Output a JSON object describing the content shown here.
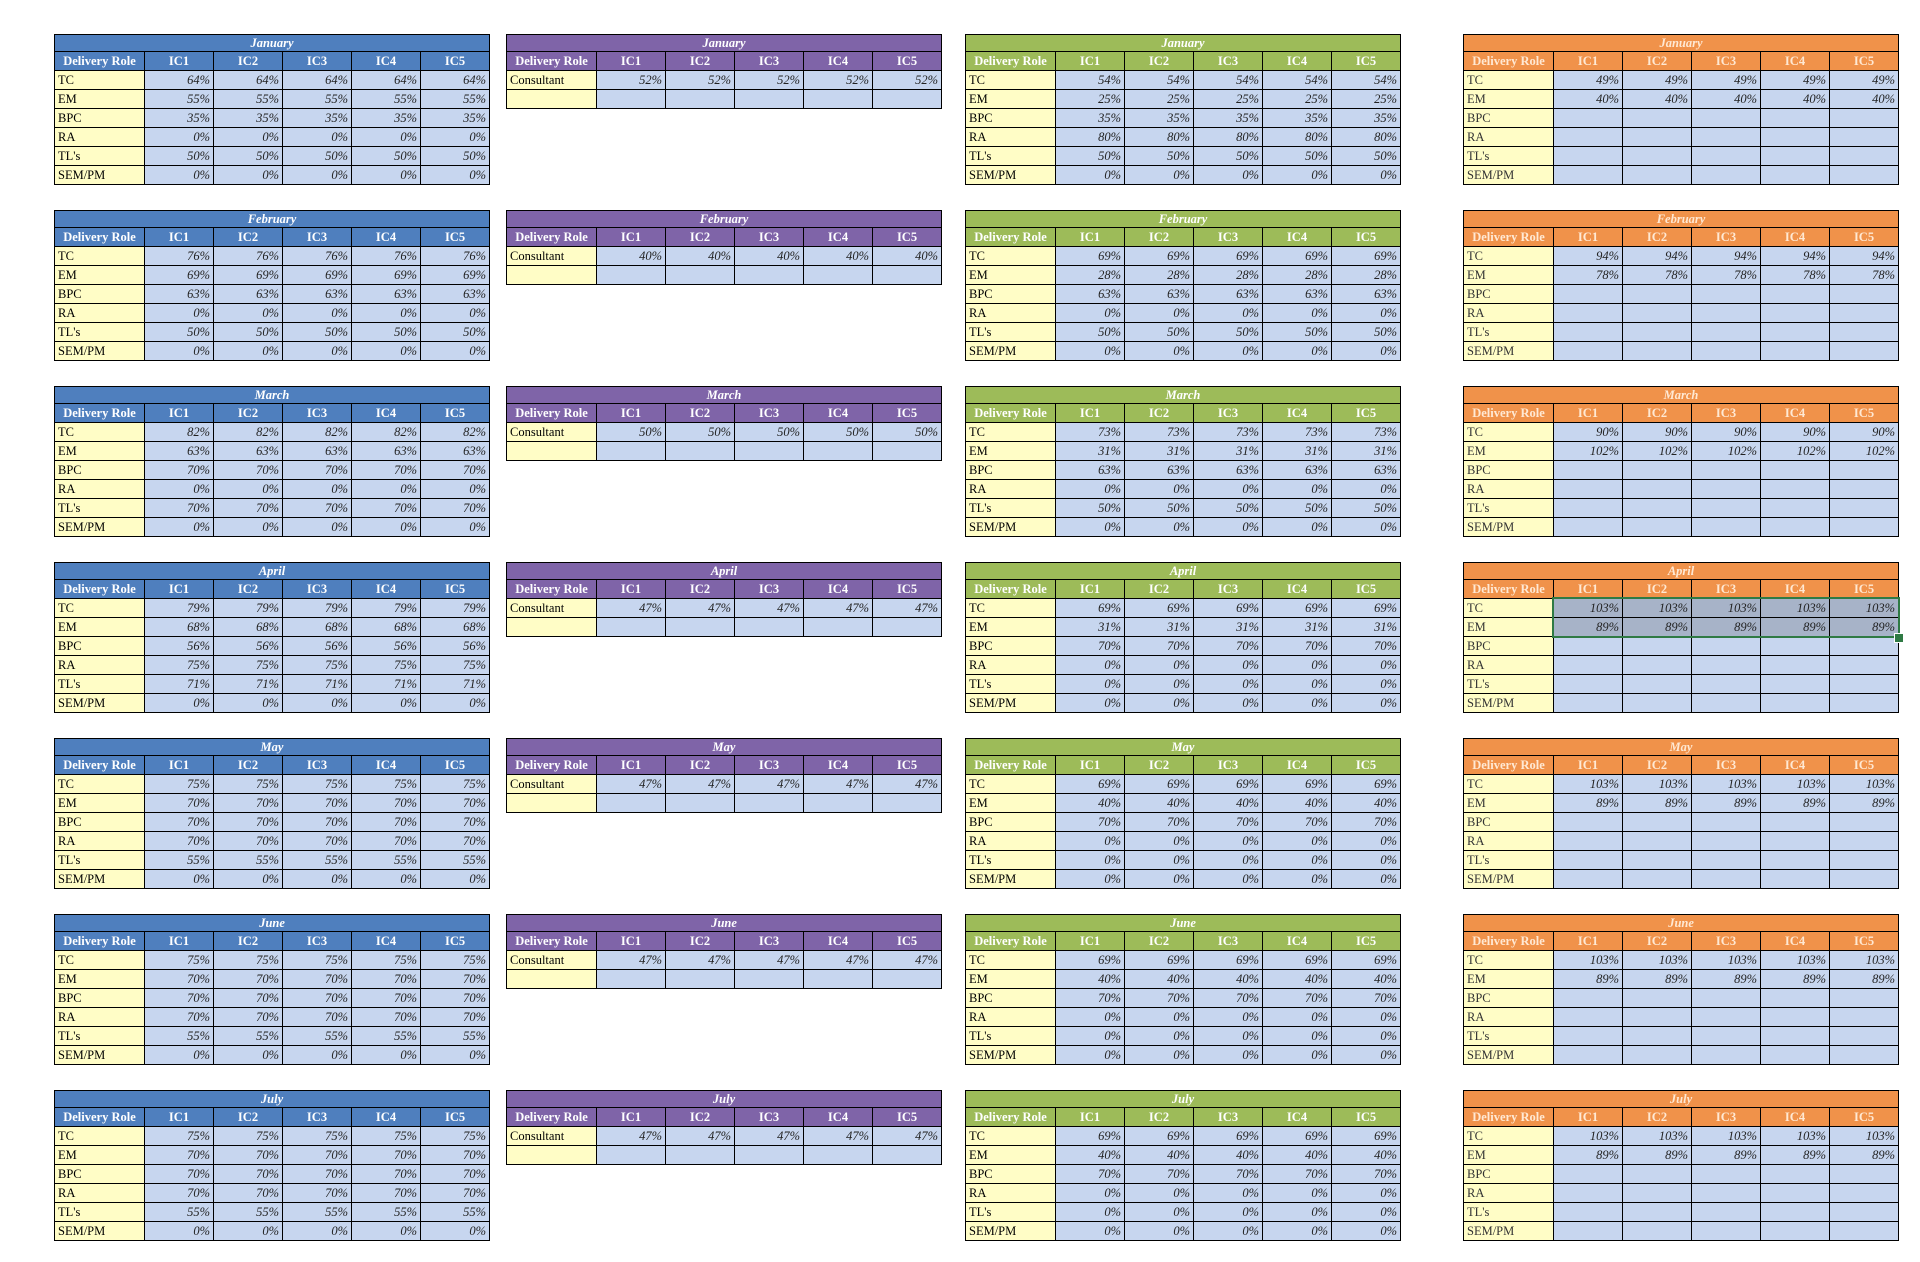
{
  "tables": [
    {
      "color": "blue",
      "month": "January",
      "headers": [
        "Delivery Role",
        "IC1",
        "IC2",
        "IC3",
        "IC4",
        "IC5"
      ],
      "rows": [
        [
          "TC",
          "64%"
        ],
        [
          "EM",
          "55%"
        ],
        [
          "BPC",
          "35%"
        ],
        [
          "RA",
          "0%"
        ],
        [
          "TL's",
          "50%"
        ],
        [
          "SEM/PM",
          "0%"
        ]
      ]
    },
    {
      "color": "purple",
      "month": "January",
      "headers": [
        "Delivery Role",
        "IC1",
        "IC2",
        "IC3",
        "IC4",
        "IC5"
      ],
      "rows": [
        [
          "Consultant",
          "52%"
        ],
        [
          "",
          ""
        ]
      ]
    },
    {
      "color": "green",
      "month": "January",
      "headers": [
        "Delivery Role",
        "IC1",
        "IC2",
        "IC3",
        "IC4",
        "IC5"
      ],
      "rows": [
        [
          "TC",
          "54%"
        ],
        [
          "EM",
          "25%"
        ],
        [
          "BPC",
          "35%"
        ],
        [
          "RA",
          "80%"
        ],
        [
          "TL's",
          "50%"
        ],
        [
          "SEM/PM",
          "0%"
        ]
      ]
    },
    {
      "color": "orange",
      "month": "January",
      "headers": [
        "Delivery Role",
        "IC1",
        "IC2",
        "IC3",
        "IC4",
        "IC5"
      ],
      "rows": [
        [
          "TC",
          "49%"
        ],
        [
          "EM",
          "40%"
        ],
        [
          "BPC",
          ""
        ],
        [
          "RA",
          ""
        ],
        [
          "TL's",
          ""
        ],
        [
          "SEM/PM",
          ""
        ]
      ]
    },
    {
      "color": "blue",
      "month": "February",
      "headers": [
        "Delivery Role",
        "IC1",
        "IC2",
        "IC3",
        "IC4",
        "IC5"
      ],
      "rows": [
        [
          "TC",
          "76%"
        ],
        [
          "EM",
          "69%"
        ],
        [
          "BPC",
          "63%"
        ],
        [
          "RA",
          "0%"
        ],
        [
          "TL's",
          "50%"
        ],
        [
          "SEM/PM",
          "0%"
        ]
      ]
    },
    {
      "color": "purple",
      "month": "February",
      "headers": [
        "Delivery Role",
        "IC1",
        "IC2",
        "IC3",
        "IC4",
        "IC5"
      ],
      "rows": [
        [
          "Consultant",
          "40%"
        ],
        [
          "",
          ""
        ]
      ]
    },
    {
      "color": "green",
      "month": "February",
      "headers": [
        "Delivery Role",
        "IC1",
        "IC2",
        "IC3",
        "IC4",
        "IC5"
      ],
      "rows": [
        [
          "TC",
          "69%"
        ],
        [
          "EM",
          "28%"
        ],
        [
          "BPC",
          "63%"
        ],
        [
          "RA",
          "0%"
        ],
        [
          "TL's",
          "50%"
        ],
        [
          "SEM/PM",
          "0%"
        ]
      ]
    },
    {
      "color": "orange",
      "month": "February",
      "headers": [
        "Delivery Role",
        "IC1",
        "IC2",
        "IC3",
        "IC4",
        "IC5"
      ],
      "rows": [
        [
          "TC",
          "94%"
        ],
        [
          "EM",
          "78%"
        ],
        [
          "BPC",
          ""
        ],
        [
          "RA",
          ""
        ],
        [
          "TL's",
          ""
        ],
        [
          "SEM/PM",
          ""
        ]
      ]
    },
    {
      "color": "blue",
      "month": "March",
      "headers": [
        "Delivery Role",
        "IC1",
        "IC2",
        "IC3",
        "IC4",
        "IC5"
      ],
      "rows": [
        [
          "TC",
          "82%"
        ],
        [
          "EM",
          "63%"
        ],
        [
          "BPC",
          "70%"
        ],
        [
          "RA",
          "0%"
        ],
        [
          "TL's",
          "70%"
        ],
        [
          "SEM/PM",
          "0%"
        ]
      ]
    },
    {
      "color": "purple",
      "month": "March",
      "headers": [
        "Delivery Role",
        "IC1",
        "IC2",
        "IC3",
        "IC4",
        "IC5"
      ],
      "rows": [
        [
          "Consultant",
          "50%"
        ],
        [
          "",
          ""
        ]
      ]
    },
    {
      "color": "green",
      "month": "March",
      "headers": [
        "Delivery Role",
        "IC1",
        "IC2",
        "IC3",
        "IC4",
        "IC5"
      ],
      "rows": [
        [
          "TC",
          "73%"
        ],
        [
          "EM",
          "31%"
        ],
        [
          "BPC",
          "63%"
        ],
        [
          "RA",
          "0%"
        ],
        [
          "TL's",
          "50%"
        ],
        [
          "SEM/PM",
          "0%"
        ]
      ]
    },
    {
      "color": "orange",
      "month": "March",
      "headers": [
        "Delivery Role",
        "IC1",
        "IC2",
        "IC3",
        "IC4",
        "IC5"
      ],
      "rows": [
        [
          "TC",
          "90%"
        ],
        [
          "EM",
          "102%"
        ],
        [
          "BPC",
          ""
        ],
        [
          "RA",
          ""
        ],
        [
          "TL's",
          ""
        ],
        [
          "SEM/PM",
          ""
        ]
      ]
    },
    {
      "color": "blue",
      "month": "April",
      "headers": [
        "Delivery Role",
        "IC1",
        "IC2",
        "IC3",
        "IC4",
        "IC5"
      ],
      "rows": [
        [
          "TC",
          "79%"
        ],
        [
          "EM",
          "68%"
        ],
        [
          "BPC",
          "56%"
        ],
        [
          "RA",
          "75%"
        ],
        [
          "TL's",
          "71%"
        ],
        [
          "SEM/PM",
          "0%"
        ]
      ]
    },
    {
      "color": "purple",
      "month": "April",
      "headers": [
        "Delivery Role",
        "IC1",
        "IC2",
        "IC3",
        "IC4",
        "IC5"
      ],
      "rows": [
        [
          "Consultant",
          "47%"
        ],
        [
          "",
          ""
        ]
      ]
    },
    {
      "color": "green",
      "month": "April",
      "headers": [
        "Delivery Role",
        "IC1",
        "IC2",
        "IC3",
        "IC4",
        "IC5"
      ],
      "rows": [
        [
          "TC",
          "69%"
        ],
        [
          "EM",
          "31%"
        ],
        [
          "BPC",
          "70%"
        ],
        [
          "RA",
          "0%"
        ],
        [
          "TL's",
          "0%"
        ],
        [
          "SEM/PM",
          "0%"
        ]
      ]
    },
    {
      "color": "orange",
      "month": "April",
      "selected": true,
      "headers": [
        "Delivery Role",
        "IC1",
        "IC2",
        "IC3",
        "IC4",
        "IC5"
      ],
      "rows": [
        [
          "TC",
          "103%"
        ],
        [
          "EM",
          "89%"
        ],
        [
          "BPC",
          ""
        ],
        [
          "RA",
          ""
        ],
        [
          "TL's",
          ""
        ],
        [
          "SEM/PM",
          ""
        ]
      ]
    },
    {
      "color": "blue",
      "month": "May",
      "headers": [
        "Delivery Role",
        "IC1",
        "IC2",
        "IC3",
        "IC4",
        "IC5"
      ],
      "rows": [
        [
          "TC",
          "75%"
        ],
        [
          "EM",
          "70%"
        ],
        [
          "BPC",
          "70%"
        ],
        [
          "RA",
          "70%"
        ],
        [
          "TL's",
          "55%"
        ],
        [
          "SEM/PM",
          "0%"
        ]
      ]
    },
    {
      "color": "purple",
      "month": "May",
      "headers": [
        "Delivery Role",
        "IC1",
        "IC2",
        "IC3",
        "IC4",
        "IC5"
      ],
      "rows": [
        [
          "Consultant",
          "47%"
        ],
        [
          "",
          ""
        ]
      ]
    },
    {
      "color": "green",
      "month": "May",
      "headers": [
        "Delivery Role",
        "IC1",
        "IC2",
        "IC3",
        "IC4",
        "IC5"
      ],
      "rows": [
        [
          "TC",
          "69%"
        ],
        [
          "EM",
          "40%"
        ],
        [
          "BPC",
          "70%"
        ],
        [
          "RA",
          "0%"
        ],
        [
          "TL's",
          "0%"
        ],
        [
          "SEM/PM",
          "0%"
        ]
      ]
    },
    {
      "color": "orange",
      "month": "May",
      "headers": [
        "Delivery Role",
        "IC1",
        "IC2",
        "IC3",
        "IC4",
        "IC5"
      ],
      "rows": [
        [
          "TC",
          "103%"
        ],
        [
          "EM",
          "89%"
        ],
        [
          "BPC",
          ""
        ],
        [
          "RA",
          ""
        ],
        [
          "TL's",
          ""
        ],
        [
          "SEM/PM",
          ""
        ]
      ]
    },
    {
      "color": "blue",
      "month": "June",
      "headers": [
        "Delivery Role",
        "IC1",
        "IC2",
        "IC3",
        "IC4",
        "IC5"
      ],
      "rows": [
        [
          "TC",
          "75%"
        ],
        [
          "EM",
          "70%"
        ],
        [
          "BPC",
          "70%"
        ],
        [
          "RA",
          "70%"
        ],
        [
          "TL's",
          "55%"
        ],
        [
          "SEM/PM",
          "0%"
        ]
      ]
    },
    {
      "color": "purple",
      "month": "June",
      "headers": [
        "Delivery Role",
        "IC1",
        "IC2",
        "IC3",
        "IC4",
        "IC5"
      ],
      "rows": [
        [
          "Consultant",
          "47%"
        ],
        [
          "",
          ""
        ]
      ]
    },
    {
      "color": "green",
      "month": "June",
      "headers": [
        "Delivery Role",
        "IC1",
        "IC2",
        "IC3",
        "IC4",
        "IC5"
      ],
      "rows": [
        [
          "TC",
          "69%"
        ],
        [
          "EM",
          "40%"
        ],
        [
          "BPC",
          "70%"
        ],
        [
          "RA",
          "0%"
        ],
        [
          "TL's",
          "0%"
        ],
        [
          "SEM/PM",
          "0%"
        ]
      ]
    },
    {
      "color": "orange",
      "month": "June",
      "headers": [
        "Delivery Role",
        "IC1",
        "IC2",
        "IC3",
        "IC4",
        "IC5"
      ],
      "rows": [
        [
          "TC",
          "103%"
        ],
        [
          "EM",
          "89%"
        ],
        [
          "BPC",
          ""
        ],
        [
          "RA",
          ""
        ],
        [
          "TL's",
          ""
        ],
        [
          "SEM/PM",
          ""
        ]
      ]
    },
    {
      "color": "blue",
      "month": "July",
      "headers": [
        "Delivery Role",
        "IC1",
        "IC2",
        "IC3",
        "IC4",
        "IC5"
      ],
      "rows": [
        [
          "TC",
          "75%"
        ],
        [
          "EM",
          "70%"
        ],
        [
          "BPC",
          "70%"
        ],
        [
          "RA",
          "70%"
        ],
        [
          "TL's",
          "55%"
        ],
        [
          "SEM/PM",
          "0%"
        ]
      ]
    },
    {
      "color": "purple",
      "month": "July",
      "headers": [
        "Delivery Role",
        "IC1",
        "IC2",
        "IC3",
        "IC4",
        "IC5"
      ],
      "rows": [
        [
          "Consultant",
          "47%"
        ],
        [
          "",
          ""
        ]
      ]
    },
    {
      "color": "green",
      "month": "July",
      "headers": [
        "Delivery Role",
        "IC1",
        "IC2",
        "IC3",
        "IC4",
        "IC5"
      ],
      "rows": [
        [
          "TC",
          "69%"
        ],
        [
          "EM",
          "40%"
        ],
        [
          "BPC",
          "70%"
        ],
        [
          "RA",
          "0%"
        ],
        [
          "TL's",
          "0%"
        ],
        [
          "SEM/PM",
          "0%"
        ]
      ]
    },
    {
      "color": "orange",
      "month": "July",
      "headers": [
        "Delivery Role",
        "IC1",
        "IC2",
        "IC3",
        "IC4",
        "IC5"
      ],
      "rows": [
        [
          "TC",
          "103%"
        ],
        [
          "EM",
          "89%"
        ],
        [
          "BPC",
          ""
        ],
        [
          "RA",
          ""
        ],
        [
          "TL's",
          ""
        ],
        [
          "SEM/PM",
          ""
        ]
      ]
    }
  ]
}
